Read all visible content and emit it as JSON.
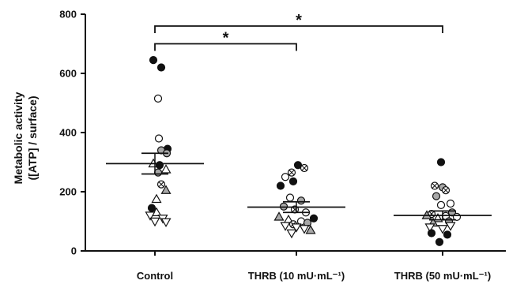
{
  "chart_data": {
    "type": "scatter",
    "ylabel_line1": "Metabolic activity",
    "ylabel_line2": "([ATP] / surface)",
    "ylim": [
      0,
      800
    ],
    "yticks": [
      0,
      200,
      400,
      600,
      800
    ],
    "categories": [
      "Control",
      "THRB (10 mU·mL⁻¹)",
      "THRB (50 mU·mL⁻¹)"
    ],
    "series": [
      {
        "category": "Control",
        "mean": 295,
        "sem": 35,
        "points": [
          {
            "y": 645,
            "marker": "filled-circle",
            "dx": -2
          },
          {
            "y": 620,
            "marker": "filled-circle",
            "dx": 8
          },
          {
            "y": 515,
            "marker": "open-circle",
            "dx": 4
          },
          {
            "y": 380,
            "marker": "open-circle",
            "dx": 5
          },
          {
            "y": 345,
            "marker": "filled-circle",
            "dx": 16
          },
          {
            "y": 340,
            "marker": "gray-circle",
            "dx": 8
          },
          {
            "y": 330,
            "marker": "gray-circle",
            "dx": 15
          },
          {
            "y": 295,
            "marker": "open-triangle-up",
            "dx": -2
          },
          {
            "y": 290,
            "marker": "filled-circle",
            "dx": 6
          },
          {
            "y": 275,
            "marker": "open-triangle-up",
            "dx": 14
          },
          {
            "y": 265,
            "marker": "gray-circle",
            "dx": 4
          },
          {
            "y": 225,
            "marker": "crossed-circle",
            "dx": 8
          },
          {
            "y": 205,
            "marker": "gray-triangle-up",
            "dx": 14
          },
          {
            "y": 175,
            "marker": "open-triangle-up",
            "dx": 2
          },
          {
            "y": 145,
            "marker": "filled-circle",
            "dx": -4
          },
          {
            "y": 130,
            "marker": "open-triangle-up",
            "dx": 2
          },
          {
            "y": 120,
            "marker": "open-triangle-down",
            "dx": -6
          },
          {
            "y": 110,
            "marker": "open-triangle-down",
            "dx": 10
          },
          {
            "y": 100,
            "marker": "open-triangle-down",
            "dx": 0
          },
          {
            "y": 98,
            "marker": "open-triangle-down",
            "dx": 14
          }
        ]
      },
      {
        "category": "THRB (10 mU·mL⁻¹)",
        "mean": 148,
        "sem": 18,
        "points": [
          {
            "y": 290,
            "marker": "filled-circle",
            "dx": 2
          },
          {
            "y": 280,
            "marker": "crossed-circle",
            "dx": 10
          },
          {
            "y": 265,
            "marker": "crossed-circle",
            "dx": -6
          },
          {
            "y": 250,
            "marker": "open-circle",
            "dx": -14
          },
          {
            "y": 235,
            "marker": "filled-circle",
            "dx": -4
          },
          {
            "y": 220,
            "marker": "filled-circle",
            "dx": -20
          },
          {
            "y": 180,
            "marker": "open-circle",
            "dx": -8
          },
          {
            "y": 170,
            "marker": "gray-circle",
            "dx": 6
          },
          {
            "y": 150,
            "marker": "gray-circle",
            "dx": -16
          },
          {
            "y": 140,
            "marker": "crossed-circle",
            "dx": -2
          },
          {
            "y": 130,
            "marker": "open-circle",
            "dx": 12
          },
          {
            "y": 115,
            "marker": "gray-triangle-up",
            "dx": -22
          },
          {
            "y": 110,
            "marker": "filled-circle",
            "dx": 22
          },
          {
            "y": 105,
            "marker": "open-triangle-up",
            "dx": -10
          },
          {
            "y": 100,
            "marker": "open-circle",
            "dx": 6
          },
          {
            "y": 95,
            "marker": "gray-circle",
            "dx": 14
          },
          {
            "y": 90,
            "marker": "crossed-circle",
            "dx": -4
          },
          {
            "y": 85,
            "marker": "open-triangle-down",
            "dx": -14
          },
          {
            "y": 80,
            "marker": "open-triangle-down",
            "dx": 0
          },
          {
            "y": 75,
            "marker": "open-triangle-down",
            "dx": 10
          },
          {
            "y": 70,
            "marker": "gray-triangle-up",
            "dx": 18
          },
          {
            "y": 60,
            "marker": "open-triangle-down",
            "dx": -6
          }
        ]
      },
      {
        "category": "THRB (50 mU·mL⁻¹)",
        "mean": 120,
        "sem": 15,
        "points": [
          {
            "y": 300,
            "marker": "filled-circle",
            "dx": -2
          },
          {
            "y": 220,
            "marker": "crossed-circle",
            "dx": -10
          },
          {
            "y": 215,
            "marker": "gray-circle",
            "dx": 0
          },
          {
            "y": 205,
            "marker": "crossed-circle",
            "dx": 4
          },
          {
            "y": 185,
            "marker": "gray-circle",
            "dx": -8
          },
          {
            "y": 160,
            "marker": "open-circle",
            "dx": 10
          },
          {
            "y": 155,
            "marker": "open-circle",
            "dx": -2
          },
          {
            "y": 130,
            "marker": "gray-circle",
            "dx": 12
          },
          {
            "y": 125,
            "marker": "crossed-circle",
            "dx": -14
          },
          {
            "y": 120,
            "marker": "gray-triangle-up",
            "dx": -20
          },
          {
            "y": 118,
            "marker": "open-circle",
            "dx": 4
          },
          {
            "y": 115,
            "marker": "open-circle",
            "dx": 18
          },
          {
            "y": 110,
            "marker": "open-triangle-up",
            "dx": -6
          },
          {
            "y": 100,
            "marker": "gray-circle",
            "dx": 8
          },
          {
            "y": 95,
            "marker": "gray-triangle-up",
            "dx": -12
          },
          {
            "y": 85,
            "marker": "open-triangle-down",
            "dx": 10
          },
          {
            "y": 80,
            "marker": "open-triangle-down",
            "dx": -16
          },
          {
            "y": 75,
            "marker": "open-triangle-down",
            "dx": 0
          },
          {
            "y": 60,
            "marker": "filled-circle",
            "dx": -14
          },
          {
            "y": 55,
            "marker": "filled-circle",
            "dx": 6
          },
          {
            "y": 30,
            "marker": "filled-circle",
            "dx": -4
          }
        ]
      }
    ],
    "significance": [
      {
        "from": 0,
        "to": 2,
        "label": "*",
        "y": 760
      },
      {
        "from": 0,
        "to": 1,
        "label": "*",
        "y": 700
      }
    ],
    "colors": {
      "filled": "#111111",
      "gray": "#a8a8a8",
      "open": "#ffffff",
      "stroke": "#111111"
    }
  }
}
